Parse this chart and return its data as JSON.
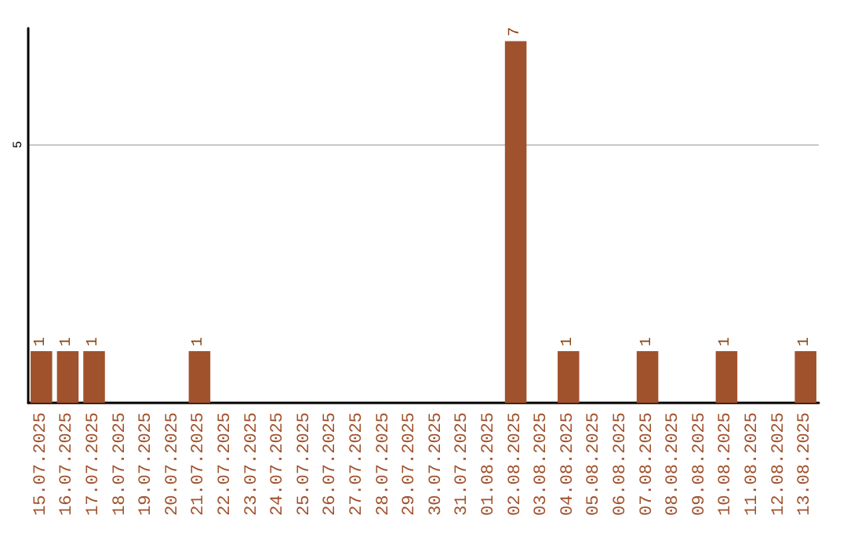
{
  "chart_data": {
    "type": "bar",
    "categories": [
      "15.07.2025",
      "16.07.2025",
      "17.07.2025",
      "18.07.2025",
      "19.07.2025",
      "20.07.2025",
      "21.07.2025",
      "22.07.2025",
      "23.07.2025",
      "24.07.2025",
      "25.07.2025",
      "26.07.2025",
      "27.07.2025",
      "28.07.2025",
      "29.07.2025",
      "30.07.2025",
      "31.07.2025",
      "01.08.2025",
      "02.08.2025",
      "03.08.2025",
      "04.08.2025",
      "05.08.2025",
      "06.08.2025",
      "07.08.2025",
      "08.08.2025",
      "09.08.2025",
      "10.08.2025",
      "11.08.2025",
      "12.08.2025",
      "13.08.2025"
    ],
    "values": [
      1,
      1,
      1,
      0,
      0,
      0,
      1,
      0,
      0,
      0,
      0,
      0,
      0,
      0,
      0,
      0,
      0,
      0,
      7,
      0,
      1,
      0,
      0,
      1,
      0,
      0,
      1,
      0,
      0,
      1
    ],
    "value_labels": [
      "1",
      "1",
      "1",
      null,
      null,
      null,
      "1",
      null,
      null,
      null,
      null,
      null,
      null,
      null,
      null,
      null,
      null,
      null,
      "7",
      null,
      "1",
      null,
      null,
      "1",
      null,
      null,
      "1",
      null,
      null,
      "1"
    ],
    "color": "#a0522d",
    "ylim": [
      0,
      7.25
    ],
    "yticks": [
      5
    ],
    "grid": "y"
  }
}
